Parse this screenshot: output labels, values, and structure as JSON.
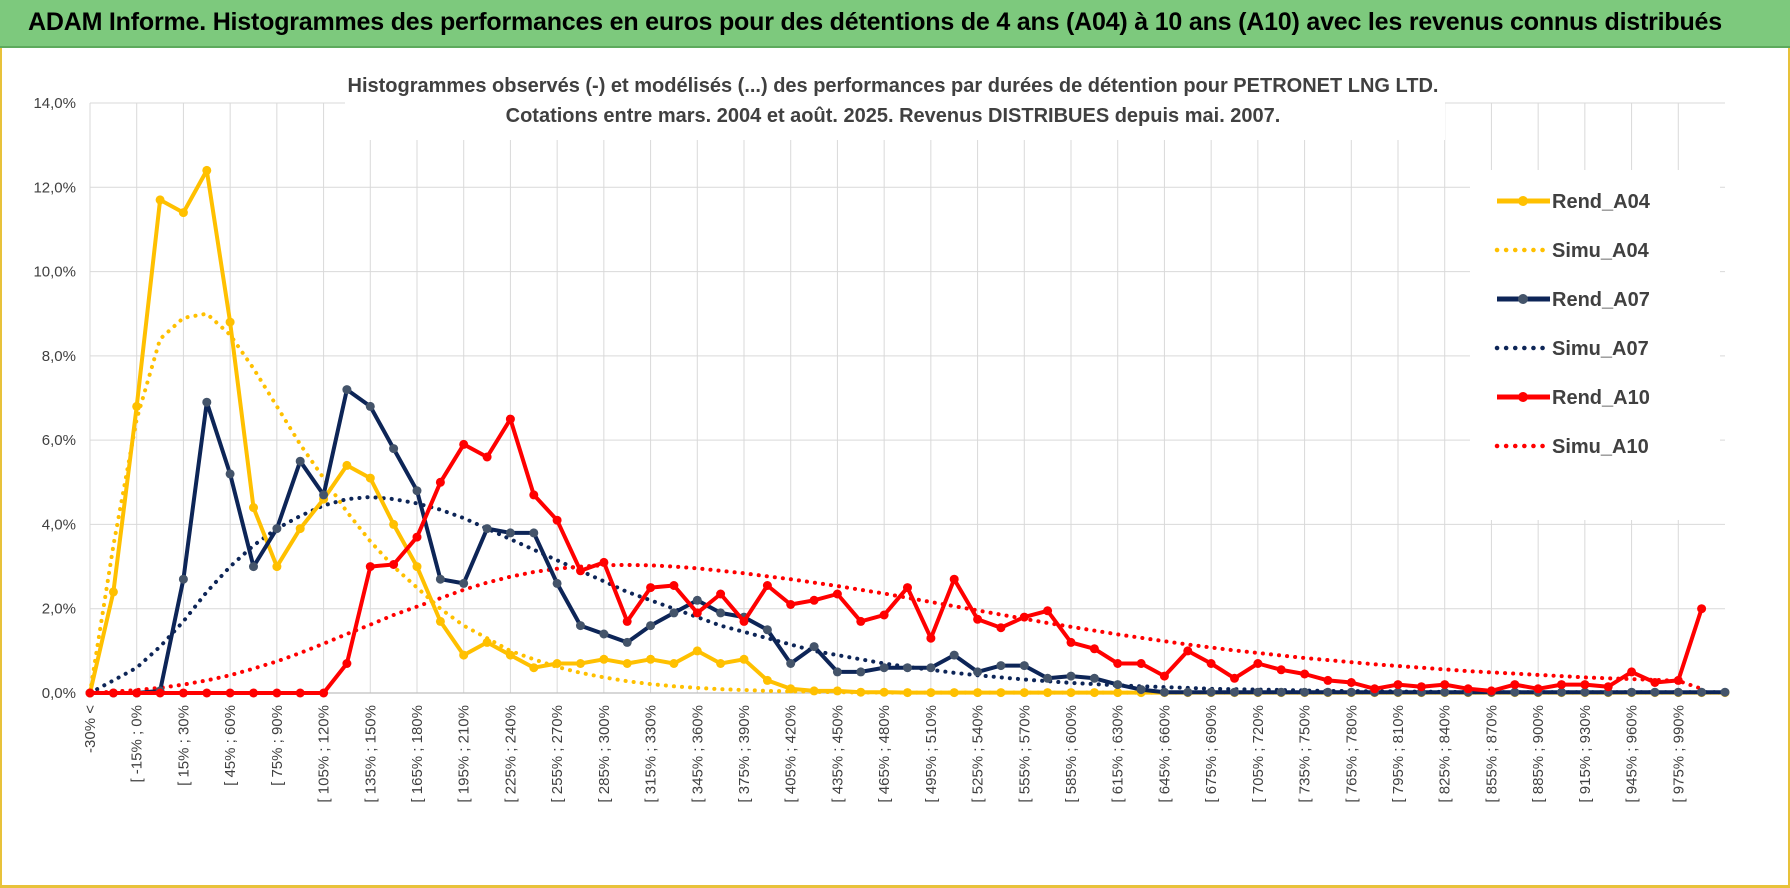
{
  "header": {
    "title": "ADAM Informe. Histogrammes des performances en euros pour des détentions de 4 ans (A04) à 10 ans (A10) avec les revenus connus distribués"
  },
  "chart_data": {
    "type": "line",
    "title": "Histogrammes observés (-) et modélisés (...) des performances par durées de détention pour PETRONET LNG LTD.",
    "subtitle": "Cotations entre mars. 2004 et août. 2025. Revenus DISTRIBUES depuis mai. 2007.",
    "ylim": [
      0,
      14
    ],
    "y_ticks": [
      "0,0%",
      "2,0%",
      "4,0%",
      "6,0%",
      "8,0%",
      "10,0%",
      "12,0%",
      "14,0%"
    ],
    "grid": true,
    "legend_position": "right",
    "x_labels": [
      "-30% <",
      "[ -15% ; 0%",
      "[ 15% ; 30%",
      "[ 45% ; 60%",
      "[ 75% ; 90%",
      "[ 105% ; 120%",
      "[ 135% ; 150%",
      "[ 165% ; 180%",
      "[ 195% ; 210%",
      "[ 225% ; 240%",
      "[ 255% ; 270%",
      "[ 285% ; 300%",
      "[ 315% ; 330%",
      "[ 345% ; 360%",
      "[ 375% ; 390%",
      "[ 405% ; 420%",
      "[ 435% ; 450%",
      "[ 465% ; 480%",
      "[ 495% ; 510%",
      "[ 525% ; 540%",
      "[ 555% ; 570%",
      "[ 585% ; 600%",
      "[ 615% ; 630%",
      "[ 645% ; 660%",
      "[ 675% ; 690%",
      "[ 705% ; 720%",
      "[ 735% ; 750%",
      "[ 765% ; 780%",
      "[ 795% ; 810%",
      "[ 825% ; 840%",
      "[ 855% ; 870%",
      "[ 885% ; 900%",
      "[ 915% ; 930%",
      "[ 945% ; 960%",
      "[ 975% ; 990%"
    ],
    "series": [
      {
        "name": "Rend_A04",
        "color": "#ffc000",
        "style": "solid",
        "markers": true,
        "values": [
          0,
          2.4,
          6.8,
          11.7,
          11.4,
          12.4,
          8.8,
          4.4,
          3.0,
          3.9,
          4.6,
          5.4,
          5.1,
          4.0,
          3.0,
          1.7,
          0.9,
          1.2,
          0.9,
          0.6,
          0.7,
          0.7,
          0.8,
          0.7,
          0.8,
          0.7,
          1.0,
          0.7,
          0.8,
          0.3,
          0.1,
          0.05,
          0.05,
          0.02,
          0.02,
          0.01,
          0.01,
          0.01,
          0.01,
          0.01,
          0.01,
          0.01,
          0.01,
          0.01,
          0.01,
          0.01,
          0.01,
          0.01,
          0.01,
          0.01,
          0.01,
          0.01,
          0.01,
          0.01,
          0.01,
          0.01,
          0.01,
          0.01,
          0.01,
          0.01,
          0.01,
          0.01,
          0.01,
          0.01,
          0.01,
          0.01,
          0.01,
          0.01,
          0.01,
          0.01,
          0.01
        ]
      },
      {
        "name": "Simu_A04",
        "color": "#ffc000",
        "style": "dotted",
        "markers": false,
        "values": [
          0,
          3.5,
          6.5,
          8.4,
          8.9,
          9.0,
          8.5,
          7.7,
          6.8,
          5.9,
          5.1,
          4.3,
          3.6,
          3.0,
          2.5,
          2.0,
          1.6,
          1.3,
          1.0,
          0.8,
          0.62,
          0.48,
          0.37,
          0.28,
          0.21,
          0.16,
          0.12,
          0.09,
          0.07,
          0.05,
          0.04,
          0.03,
          0.02,
          0.015,
          0.01,
          0.01,
          0.01,
          0.01,
          0.01,
          0.01,
          0.01,
          0.01,
          0.01,
          0.01,
          0.01,
          0.01,
          0.01,
          0.01,
          0.01,
          0.01,
          0.01,
          0.01,
          0.01,
          0.01,
          0.01,
          0.01,
          0.01,
          0.01,
          0.01,
          0.01,
          0.01,
          0.01,
          0.01,
          0.01,
          0.01,
          0.01,
          0.01,
          0.01,
          0.01,
          0.01,
          0.01
        ]
      },
      {
        "name": "Rend_A07",
        "color": "#0d2557",
        "style": "solid",
        "markers": true,
        "values": [
          0,
          0,
          0,
          0.05,
          2.7,
          6.9,
          5.2,
          3.0,
          3.9,
          5.5,
          4.7,
          7.2,
          6.8,
          5.8,
          4.8,
          2.7,
          2.6,
          3.9,
          3.8,
          3.8,
          2.6,
          1.6,
          1.4,
          1.2,
          1.6,
          1.9,
          2.2,
          1.9,
          1.8,
          1.5,
          0.7,
          1.1,
          0.5,
          0.5,
          0.6,
          0.6,
          0.6,
          0.9,
          0.5,
          0.65,
          0.65,
          0.35,
          0.4,
          0.35,
          0.2,
          0.08,
          0.02,
          0.02,
          0.02,
          0.02,
          0.02,
          0.02,
          0.02,
          0.02,
          0.02,
          0.02,
          0.02,
          0.02,
          0.02,
          0.02,
          0.02,
          0.02,
          0.02,
          0.02,
          0.02,
          0.02,
          0.02,
          0.02,
          0.02,
          0.02,
          0.02
        ]
      },
      {
        "name": "Simu_A07",
        "color": "#0d2557",
        "style": "dotted",
        "markers": false,
        "values": [
          0,
          0.3,
          0.6,
          1.1,
          1.7,
          2.4,
          3.0,
          3.5,
          3.9,
          4.2,
          4.45,
          4.6,
          4.65,
          4.6,
          4.5,
          4.35,
          4.15,
          3.9,
          3.65,
          3.4,
          3.15,
          2.9,
          2.65,
          2.4,
          2.2,
          2.0,
          1.8,
          1.6,
          1.45,
          1.3,
          1.15,
          1.0,
          0.9,
          0.8,
          0.7,
          0.62,
          0.55,
          0.48,
          0.42,
          0.37,
          0.32,
          0.28,
          0.24,
          0.21,
          0.18,
          0.16,
          0.14,
          0.12,
          0.1,
          0.09,
          0.08,
          0.07,
          0.06,
          0.05,
          0.045,
          0.04,
          0.035,
          0.03,
          0.025,
          0.02,
          0.02,
          0.02,
          0.02,
          0.02,
          0.02,
          0.02,
          0.02,
          0.02,
          0.02,
          0.02,
          0.02
        ]
      },
      {
        "name": "Rend_A10",
        "color": "#ff0000",
        "style": "solid",
        "markers": true,
        "values": [
          0,
          0,
          0,
          0,
          0,
          0,
          0,
          0,
          0,
          0,
          0,
          0.7,
          3.0,
          3.05,
          3.7,
          5.0,
          5.9,
          5.6,
          6.5,
          4.7,
          4.1,
          2.9,
          3.1,
          1.7,
          2.5,
          2.55,
          1.9,
          2.35,
          1.7,
          2.55,
          2.1,
          2.2,
          2.35,
          1.7,
          1.85,
          2.5,
          1.3,
          2.7,
          1.75,
          1.55,
          1.8,
          1.95,
          1.2,
          1.05,
          0.7,
          0.7,
          0.4,
          1.0,
          0.7,
          0.35,
          0.7,
          0.55,
          0.45,
          0.3,
          0.25,
          0.1,
          0.2,
          0.15,
          0.2,
          0.1,
          0.05,
          0.2,
          0.1,
          0.2,
          0.2,
          0.15,
          0.5,
          0.25,
          0.3,
          2.0
        ]
      },
      {
        "name": "Simu_A10",
        "color": "#ff0000",
        "style": "dotted",
        "markers": false,
        "values": [
          0,
          0.03,
          0.07,
          0.12,
          0.2,
          0.3,
          0.42,
          0.58,
          0.75,
          0.95,
          1.17,
          1.4,
          1.62,
          1.85,
          2.05,
          2.25,
          2.45,
          2.62,
          2.76,
          2.87,
          2.95,
          3.0,
          3.03,
          3.04,
          3.03,
          3.0,
          2.96,
          2.9,
          2.84,
          2.77,
          2.7,
          2.62,
          2.54,
          2.45,
          2.36,
          2.26,
          2.16,
          2.06,
          1.96,
          1.86,
          1.76,
          1.66,
          1.57,
          1.48,
          1.39,
          1.31,
          1.23,
          1.15,
          1.08,
          1.01,
          0.95,
          0.89,
          0.83,
          0.78,
          0.73,
          0.68,
          0.64,
          0.6,
          0.56,
          0.52,
          0.49,
          0.46,
          0.43,
          0.4,
          0.37,
          0.35,
          0.33,
          0.31,
          0.29,
          0.1
        ]
      }
    ]
  }
}
